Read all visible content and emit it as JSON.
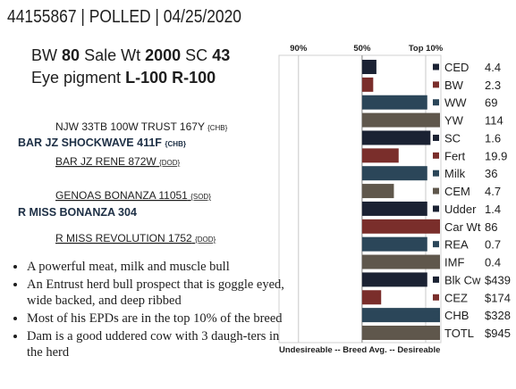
{
  "header": {
    "title": "44155867 | POLLED | 04/25/2020"
  },
  "stats": [
    {
      "label": "BW",
      "value": "80"
    },
    {
      "label": "Sale Wt",
      "value": "2000"
    },
    {
      "label": "SC",
      "value": "43"
    }
  ],
  "eye_pigment": {
    "label": "Eye pigment",
    "left": "L-100",
    "right": "R-100"
  },
  "pedigree": [
    {
      "name": "NJW 33TB 100W TRUST 167Y",
      "tag": "{CHB}"
    },
    {
      "name": "BAR JZ SHOCKWAVE 411F",
      "tag": "{CHB}"
    },
    {
      "name": "BAR JZ RENE 872W",
      "tag": "{DOD}"
    },
    {
      "name": "GENOAS BONANZA 11051",
      "tag": "{SOD}"
    },
    {
      "name": "R MISS BONANZA 304"
    },
    {
      "name": "R MISS REVOLUTION 1752",
      "tag": "{DOD}"
    }
  ],
  "bullets": [
    "A powerful meat, milk and muscle bull",
    "An Entrust herd bull prospect that is goggle eyed, wide backed, and deep ribbed",
    "Most of his EPDs are in the top 10% of the breed",
    "Dam is a good uddered cow with 3 daugh-ters in the herd"
  ],
  "chart_data": {
    "type": "bar",
    "categories": [
      "CED",
      "BW",
      "WW",
      "YW",
      "SC",
      "Fert",
      "Milk",
      "CEM",
      "Udder",
      "Car Wt",
      "REA",
      "IMF",
      "Blk Cw",
      "CEZ",
      "CHB",
      "TOTL"
    ],
    "values": [
      41,
      43,
      9,
      1,
      7,
      27,
      9,
      30,
      9,
      1,
      9,
      1,
      9,
      38,
      1,
      1
    ],
    "epds": [
      "4.4",
      "2.3",
      "69",
      "114",
      "1.6",
      "19.9",
      "36",
      "4.7",
      "1.4",
      "86",
      "0.7",
      "0.4",
      "$439",
      "$174",
      "$328",
      "$945"
    ],
    "colors": [
      "#1b2233",
      "#7a2e2b",
      "#2b4659",
      "#5f574c",
      "#1b2233",
      "#7a2e2b",
      "#2b4659",
      "#5f574c",
      "#1b2233",
      "#7a2e2b",
      "#2b4659",
      "#5f574c",
      "#1b2233",
      "#7a2e2b",
      "#2b4659",
      "#5f574c"
    ],
    "xlim": [
      100,
      1
    ],
    "xticks": [
      {
        "value": 90,
        "label": "90%"
      },
      {
        "value": 50,
        "label": "50%"
      },
      {
        "value": 10,
        "label": "Top 10%"
      }
    ],
    "base": 50,
    "x_label": "Undesireable -- Breed Avg. --  Desireable"
  }
}
